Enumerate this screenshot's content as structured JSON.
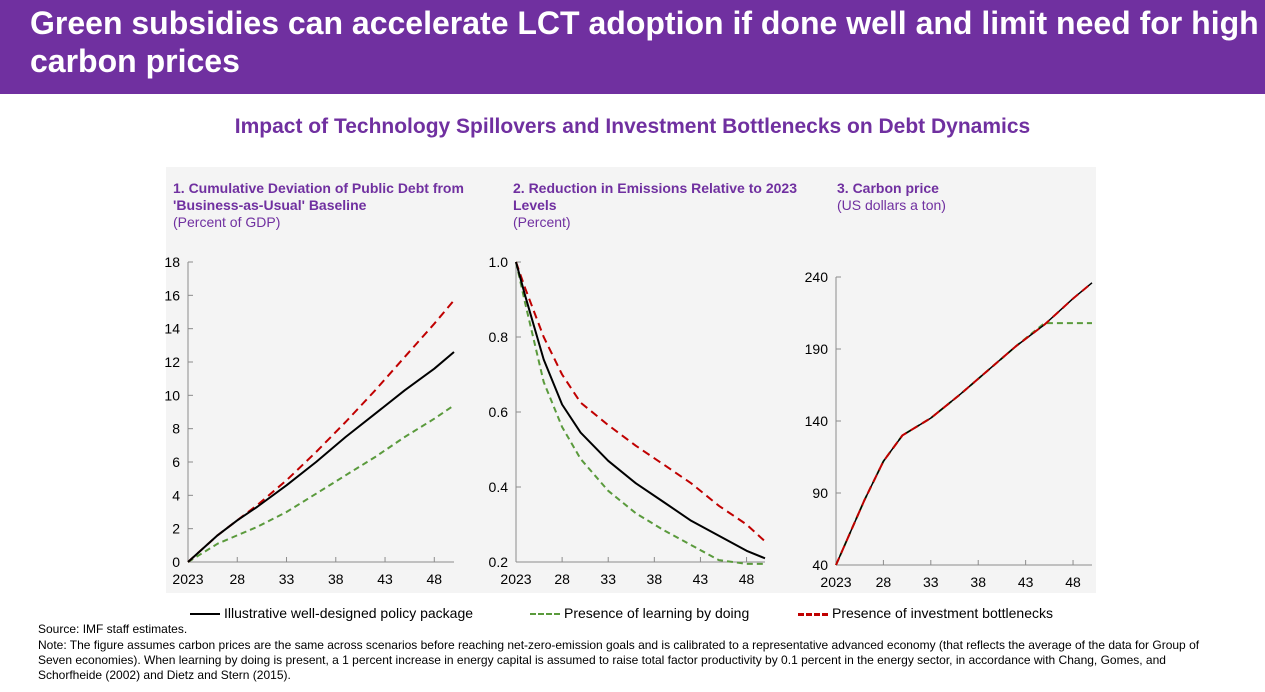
{
  "slide": {
    "title": "Green subsidies can accelerate LCT adoption if done well and limit need for high carbon prices",
    "figure_title": "Impact of Technology Spillovers and Investment Bottlenecks on Debt Dynamics",
    "source": "Source: IMF staff estimates.",
    "note": "Note: The figure assumes carbon prices are the same across scenarios before reaching net-zero-emission goals and is calibrated to a representative advanced economy (that reflects the average of the data for Group of Seven economies). When learning by doing is present, a 1 percent increase in energy capital is assumed to raise total factor productivity by 0.1 percent in the energy sector, in accordance with Chang, Gomes, and Schorfheide (2002) and Dietz and Stern (2015)."
  },
  "legend": [
    {
      "label": "Illustrative well-designed policy package",
      "color": "#000000",
      "style": "solid"
    },
    {
      "label": "Presence of learning by doing",
      "color": "#5a9a3c",
      "style": "dashed"
    },
    {
      "label": "Presence of investment bottlenecks",
      "color": "#c00000",
      "style": "dashed"
    }
  ],
  "chart_data": [
    {
      "type": "line",
      "title": "1. Cumulative Deviation of Public Debt from 'Business-as-Usual' Baseline",
      "subtitle": "(Percent of GDP)",
      "xticks": [
        "2023",
        "28",
        "33",
        "38",
        "43",
        "48"
      ],
      "xlim": [
        2023,
        2050
      ],
      "ylim": [
        0,
        18
      ],
      "yticks": [
        "0",
        "2",
        "4",
        "6",
        "8",
        "10",
        "12",
        "14",
        "16",
        "18"
      ],
      "x": [
        2023,
        2026,
        2028,
        2030,
        2033,
        2036,
        2039,
        2042,
        2045,
        2048,
        2050
      ],
      "series": [
        {
          "name": "Illustrative well-designed policy package",
          "values": [
            0,
            1.6,
            2.5,
            3.3,
            4.6,
            6.0,
            7.5,
            8.9,
            10.3,
            11.6,
            12.6
          ]
        },
        {
          "name": "Presence of learning by doing",
          "values": [
            0,
            1.1,
            1.6,
            2.1,
            3.0,
            4.1,
            5.2,
            6.3,
            7.5,
            8.6,
            9.4
          ]
        },
        {
          "name": "Presence of investment bottlenecks",
          "values": [
            0,
            1.6,
            2.5,
            3.4,
            4.9,
            6.6,
            8.4,
            10.3,
            12.3,
            14.3,
            15.7
          ]
        }
      ]
    },
    {
      "type": "line",
      "title": "2. Reduction in Emissions Relative to 2023 Levels",
      "subtitle": "(Percent)",
      "xticks": [
        "2023",
        "28",
        "33",
        "38",
        "43",
        "48"
      ],
      "xlim": [
        2023,
        2050
      ],
      "ylim": [
        0.2,
        1.0
      ],
      "yticks": [
        "0.2",
        "0.4",
        "0.6",
        "0.8",
        "1.0"
      ],
      "x": [
        2023,
        2024,
        2026,
        2028,
        2030,
        2033,
        2036,
        2039,
        2042,
        2045,
        2048,
        2050
      ],
      "series": [
        {
          "name": "Illustrative well-designed policy package",
          "values": [
            1.0,
            0.91,
            0.74,
            0.62,
            0.545,
            0.47,
            0.41,
            0.36,
            0.31,
            0.27,
            0.23,
            0.21
          ]
        },
        {
          "name": "Presence of learning by doing",
          "values": [
            1.0,
            0.89,
            0.68,
            0.56,
            0.475,
            0.39,
            0.33,
            0.285,
            0.245,
            0.205,
            0.195,
            0.195
          ]
        },
        {
          "name": "Presence of investment bottlenecks",
          "values": [
            1.0,
            0.93,
            0.8,
            0.7,
            0.625,
            0.565,
            0.51,
            0.46,
            0.41,
            0.35,
            0.3,
            0.255
          ]
        }
      ]
    },
    {
      "type": "line",
      "title": "3. Carbon price",
      "subtitle": "(US dollars a ton)",
      "xticks": [
        "2023",
        "28",
        "33",
        "38",
        "43",
        "48"
      ],
      "xlim": [
        2023,
        2050
      ],
      "ylim": [
        40,
        240
      ],
      "yticks": [
        "40",
        "90",
        "140",
        "190",
        "240"
      ],
      "x": [
        2023,
        2026,
        2028,
        2030,
        2033,
        2036,
        2039,
        2042,
        2045,
        2048,
        2050
      ],
      "series": [
        {
          "name": "Illustrative well-designed policy package",
          "values": [
            40,
            85,
            112,
            130,
            142,
            158,
            175,
            192,
            207,
            225,
            236
          ]
        },
        {
          "name": "Presence of learning by doing",
          "values": [
            40,
            85,
            112,
            130,
            142,
            158,
            175,
            192,
            208,
            208,
            208
          ]
        },
        {
          "name": "Presence of investment bottlenecks",
          "values": [
            40,
            85,
            112,
            130,
            142,
            158,
            175,
            192,
            207,
            225,
            236
          ]
        }
      ]
    }
  ]
}
